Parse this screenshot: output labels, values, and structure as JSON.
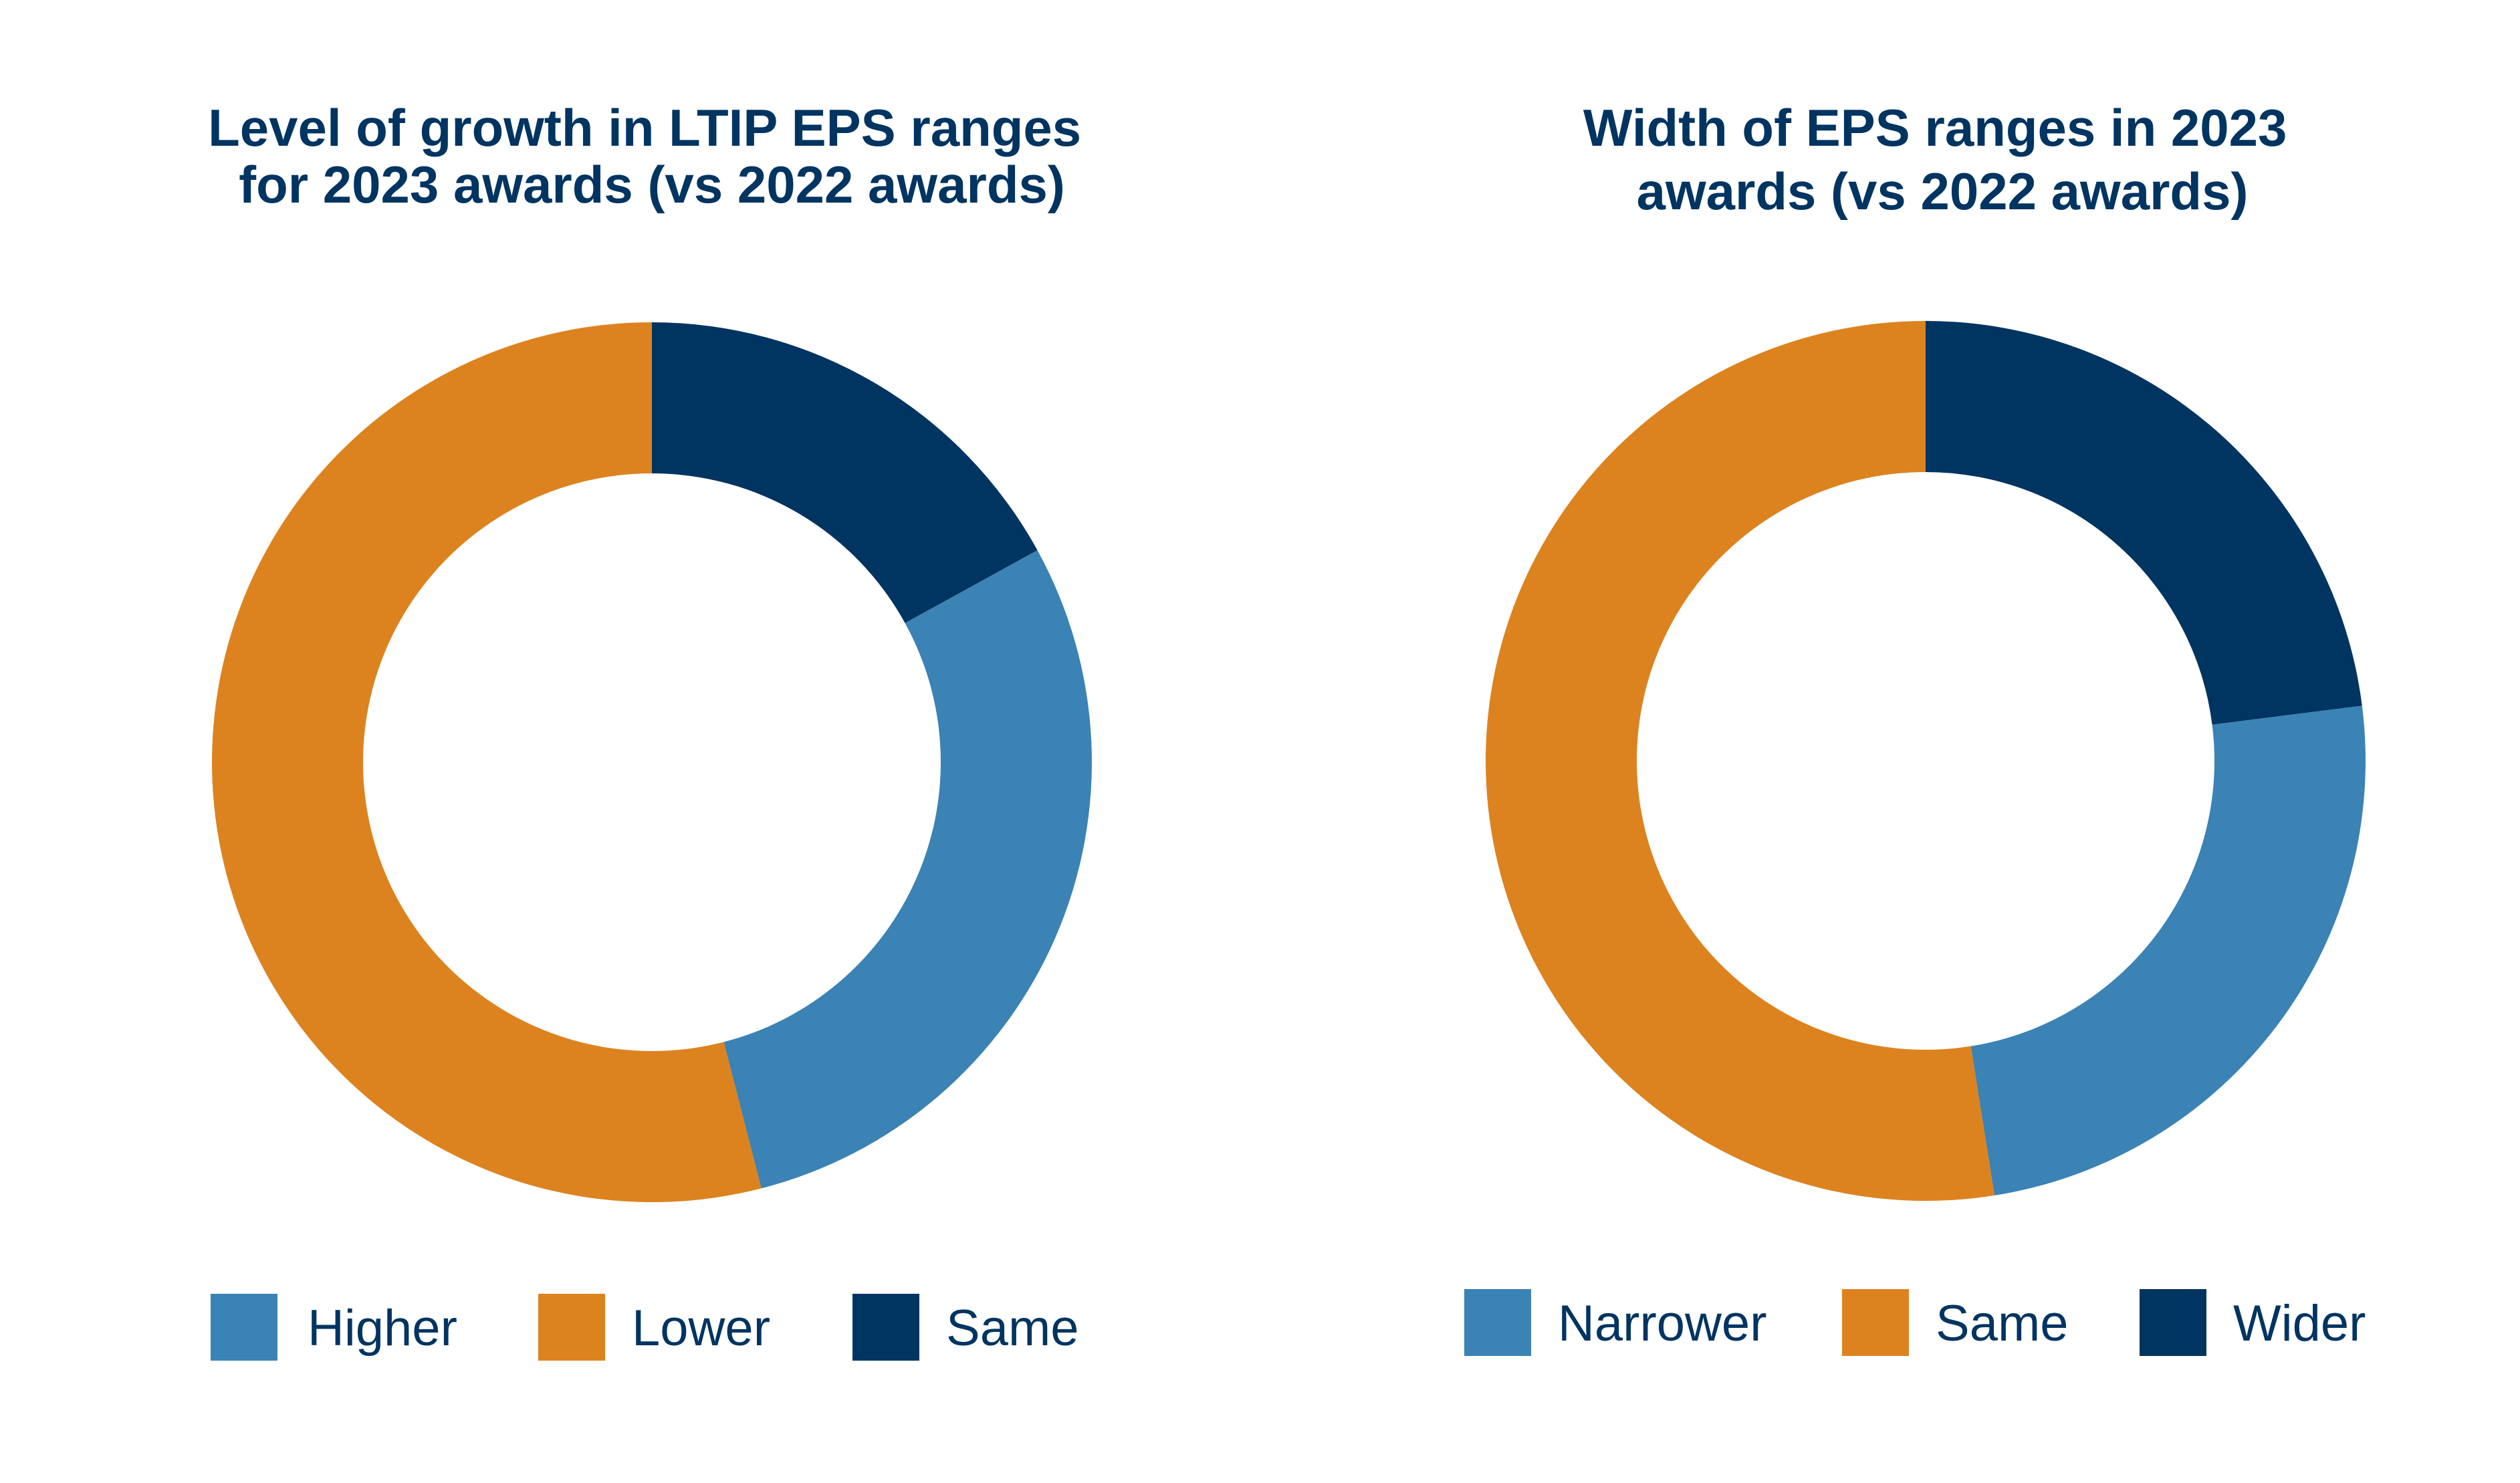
{
  "chart_data": [
    {
      "type": "pie",
      "subtype": "donut",
      "title": [
        "Level of growth in LTIP EPS ranges",
        "for 2023 awards (vs 2022 awards)"
      ],
      "categories": [
        "Higher",
        "Lower",
        "Same"
      ],
      "values": [
        29,
        54,
        17
      ],
      "colors": [
        "#3b82b5",
        "#dc831f",
        "#003461"
      ],
      "legend": "bottom"
    },
    {
      "type": "pie",
      "subtype": "donut",
      "title": [
        "Width of EPS ranges in 2023",
        "awards (vs 2022 awards)"
      ],
      "categories": [
        "Narrower",
        "Same",
        "Wider"
      ],
      "values": [
        24.5,
        52.5,
        23
      ],
      "colors": [
        "#3b82b5",
        "#dc831f",
        "#003461"
      ],
      "legend": "bottom"
    }
  ]
}
